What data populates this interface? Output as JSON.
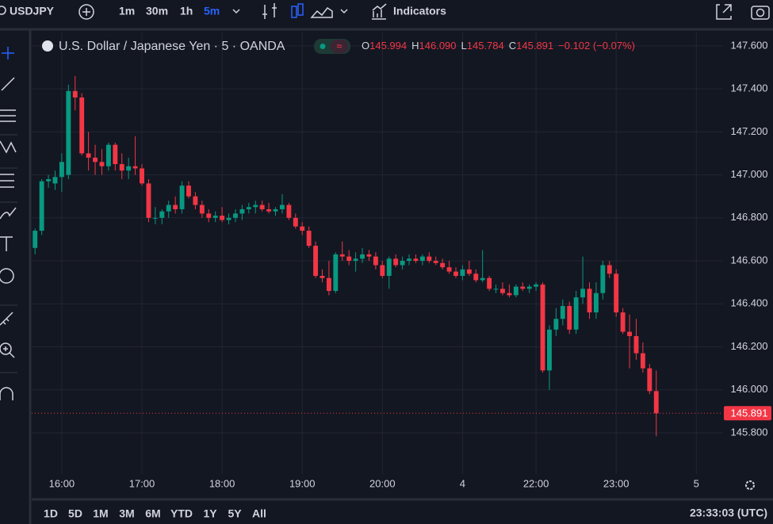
{
  "toolbar": {
    "symbol": "USDJPY",
    "intervals": [
      "1m",
      "30m",
      "1h",
      "5m"
    ],
    "indicators": "Indicators"
  },
  "legend": {
    "name": "U.S. Dollar / Japanese Yen · 5 · OANDA",
    "ohlc": [
      {
        "key": "O",
        "value": "145.994"
      },
      {
        "key": "H",
        "value": "146.090"
      },
      {
        "key": "L",
        "value": "145.784"
      },
      {
        "key": "C",
        "value": "145.891"
      }
    ],
    "change": "−0.102 (−0.07%)"
  },
  "ranges": [
    "1D",
    "5D",
    "1M",
    "3M",
    "6M",
    "YTD",
    "1Y",
    "5Y",
    "All"
  ],
  "clock": "23:33:03 (UTC)",
  "chart_data": {
    "type": "candlestick",
    "up_color": "#089981",
    "down_color": "#f23645",
    "grid": true,
    "xlim": [
      -0.5,
      103
    ],
    "xticks": [
      {
        "value": 4,
        "label": "16:00"
      },
      {
        "value": 16,
        "label": "17:00"
      },
      {
        "value": 28,
        "label": "18:00"
      },
      {
        "value": 40,
        "label": "19:00"
      },
      {
        "value": 52,
        "label": "20:00"
      },
      {
        "value": 64,
        "label": "4"
      },
      {
        "value": 75,
        "label": "22:00"
      },
      {
        "value": 87,
        "label": "23:00"
      },
      {
        "value": 99,
        "label": "5"
      }
    ],
    "ylim": [
      145.608,
      147.666
    ],
    "yticks": [
      {
        "value": 145.8,
        "label": "145.800"
      },
      {
        "value": 146,
        "label": "146.000"
      },
      {
        "value": 146.2,
        "label": "146.200"
      },
      {
        "value": 146.4,
        "label": "146.400"
      },
      {
        "value": 146.6,
        "label": "146.600"
      },
      {
        "value": 146.8,
        "label": "146.800"
      },
      {
        "value": 147,
        "label": "147.000"
      },
      {
        "value": 147.2,
        "label": "147.200"
      },
      {
        "value": 147.4,
        "label": "147.400"
      },
      {
        "value": 147.6,
        "label": "147.600"
      }
    ],
    "open": [
      146.66,
      146.74,
      146.97,
      146.96,
      146.99,
      147.0,
      147.39,
      147.36,
      147.1,
      147.08,
      147.06,
      147.04,
      147.14,
      147.05,
      147.02,
      147.04,
      147.03,
      146.96,
      146.8,
      146.8,
      146.83,
      146.86,
      146.84,
      146.95,
      146.9,
      146.86,
      146.82,
      146.8,
      146.81,
      146.79,
      146.8,
      146.82,
      146.84,
      146.85,
      146.86,
      146.84,
      146.83,
      146.84,
      146.86,
      146.8,
      146.76,
      146.74,
      146.67,
      146.53,
      146.52,
      146.46,
      146.63,
      146.62,
      146.6,
      146.61,
      146.63,
      146.62,
      146.58,
      146.53,
      146.61,
      146.58,
      146.6,
      146.61,
      146.6,
      146.62,
      146.6,
      146.59,
      146.57,
      146.55,
      146.53,
      146.56,
      146.54,
      146.51,
      146.52,
      146.47,
      146.47,
      146.45,
      146.44,
      146.48,
      146.47,
      146.48,
      146.49,
      146.09,
      146.28,
      146.33,
      146.39,
      146.28,
      146.43,
      146.47,
      146.36,
      146.45,
      146.58,
      146.54,
      146.36,
      146.27,
      146.25,
      146.17,
      146.1,
      145.994
    ],
    "high": [
      146.75,
      146.98,
      147.0,
      147.02,
      147.1,
      147.42,
      147.46,
      147.38,
      147.2,
      147.14,
      147.12,
      147.15,
      147.15,
      147.1,
      147.08,
      147.18,
      147.05,
      146.98,
      146.85,
      146.84,
      146.88,
      146.9,
      146.97,
      146.97,
      146.92,
      146.88,
      146.84,
      146.83,
      146.85,
      146.82,
      146.84,
      146.86,
      146.87,
      146.88,
      146.88,
      146.87,
      146.85,
      146.91,
      146.87,
      146.82,
      146.78,
      146.76,
      146.69,
      146.56,
      146.6,
      146.64,
      146.69,
      146.65,
      146.64,
      146.66,
      146.65,
      146.64,
      146.6,
      146.62,
      146.63,
      146.62,
      146.63,
      146.63,
      146.63,
      146.64,
      146.62,
      146.61,
      146.6,
      146.57,
      146.58,
      146.6,
      146.56,
      146.65,
      146.53,
      146.49,
      146.5,
      146.49,
      146.49,
      146.5,
      146.49,
      146.5,
      146.5,
      146.3,
      146.38,
      146.42,
      146.41,
      146.46,
      146.62,
      146.5,
      146.5,
      146.6,
      146.6,
      146.56,
      146.38,
      146.35,
      146.33,
      146.22,
      146.12,
      146.09
    ],
    "low": [
      146.63,
      146.72,
      146.94,
      146.93,
      146.92,
      146.98,
      147.3,
      147.09,
      147.02,
      147.0,
      147.0,
      147.02,
      147.02,
      146.98,
      146.98,
      147.0,
      146.95,
      146.78,
      146.77,
      146.77,
      146.8,
      146.82,
      146.82,
      146.89,
      146.84,
      146.8,
      146.78,
      146.78,
      146.78,
      146.77,
      146.78,
      146.79,
      146.82,
      146.82,
      146.83,
      146.82,
      146.81,
      146.82,
      146.79,
      146.75,
      146.72,
      146.66,
      146.52,
      146.5,
      146.44,
      146.45,
      146.6,
      146.58,
      146.55,
      146.59,
      146.6,
      146.56,
      146.52,
      146.47,
      146.57,
      146.56,
      146.58,
      146.59,
      146.58,
      146.59,
      146.58,
      146.56,
      146.54,
      146.52,
      146.51,
      146.53,
      146.5,
      146.5,
      146.46,
      146.45,
      146.44,
      146.43,
      146.43,
      146.46,
      146.45,
      146.46,
      146.08,
      146.0,
      146.25,
      146.3,
      146.26,
      146.26,
      146.4,
      146.33,
      146.33,
      146.42,
      146.52,
      146.34,
      146.26,
      146.1,
      146.14,
      146.08,
      145.98,
      145.784
    ],
    "close": [
      146.74,
      146.97,
      146.98,
      146.99,
      147.06,
      147.39,
      147.36,
      147.1,
      147.08,
      147.06,
      147.04,
      147.14,
      147.05,
      147.02,
      147.04,
      147.03,
      146.96,
      146.8,
      146.8,
      146.83,
      146.86,
      146.84,
      146.95,
      146.9,
      146.86,
      146.82,
      146.8,
      146.81,
      146.79,
      146.8,
      146.82,
      146.84,
      146.85,
      146.86,
      146.84,
      146.83,
      146.84,
      146.86,
      146.8,
      146.76,
      146.74,
      146.67,
      146.53,
      146.52,
      146.46,
      146.63,
      146.62,
      146.6,
      146.61,
      146.63,
      146.62,
      146.58,
      146.53,
      146.61,
      146.58,
      146.6,
      146.61,
      146.6,
      146.62,
      146.6,
      146.59,
      146.57,
      146.55,
      146.53,
      146.56,
      146.54,
      146.51,
      146.52,
      146.47,
      146.47,
      146.45,
      146.44,
      146.48,
      146.47,
      146.48,
      146.49,
      146.09,
      146.28,
      146.33,
      146.39,
      146.28,
      146.43,
      146.47,
      146.36,
      146.45,
      146.58,
      146.54,
      146.36,
      146.27,
      146.25,
      146.17,
      146.1,
      145.994,
      145.891
    ]
  }
}
